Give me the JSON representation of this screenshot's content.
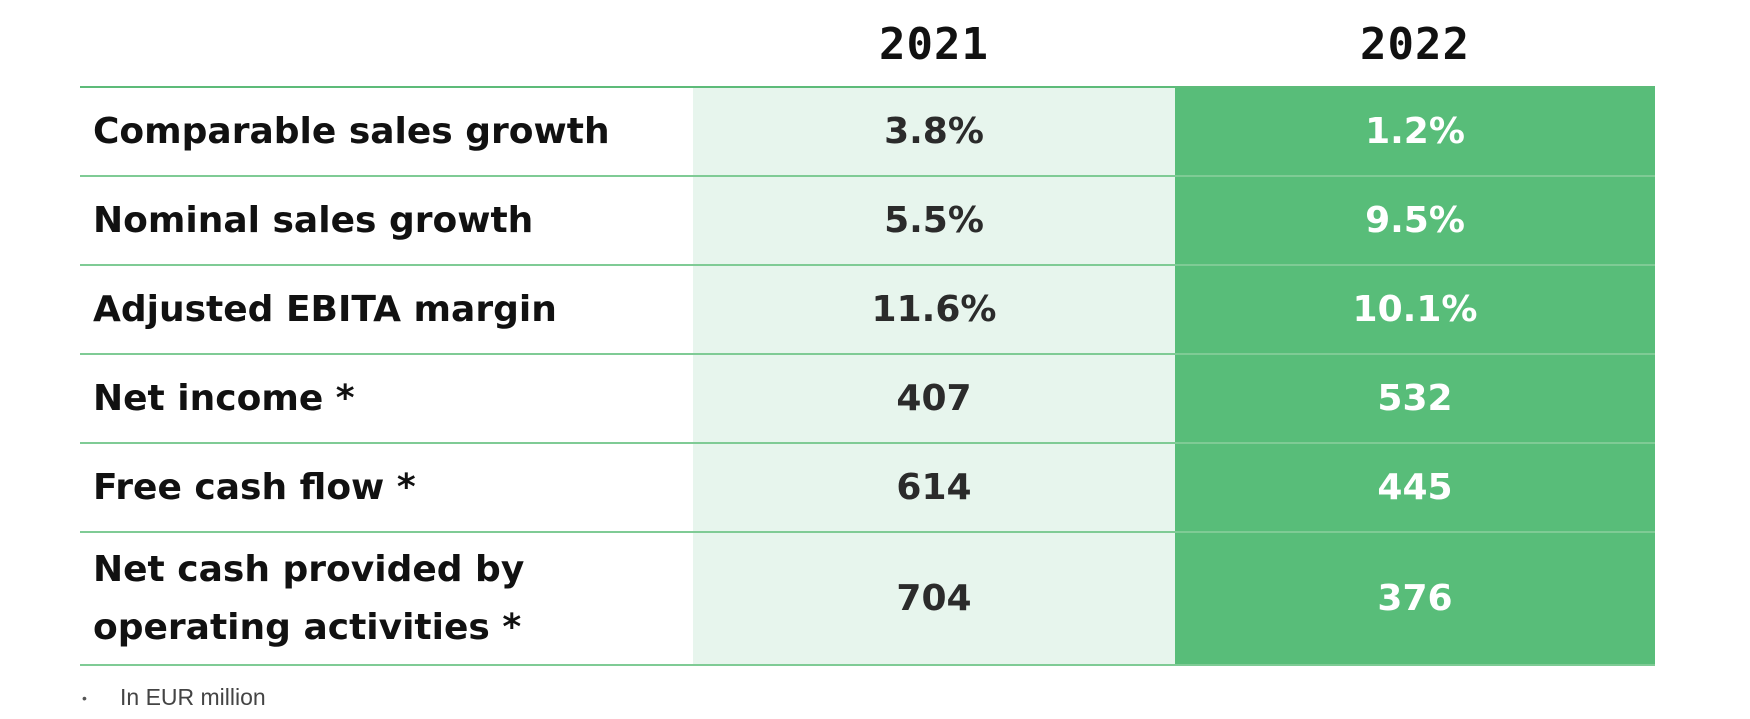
{
  "header": {
    "col_2021": "2021",
    "col_2022": "2022"
  },
  "rows": [
    {
      "label": "Comparable sales growth",
      "v2021": "3.8%",
      "v2022": "1.2%"
    },
    {
      "label": "Nominal sales growth",
      "v2021": "5.5%",
      "v2022": "9.5%"
    },
    {
      "label": "Adjusted EBITA margin",
      "v2021": "11.6%",
      "v2022": "10.1%"
    },
    {
      "label": "Net income *",
      "v2021": "407",
      "v2022": "532"
    },
    {
      "label": "Free cash flow *",
      "v2021": "614",
      "v2022": "445"
    },
    {
      "label": "Net cash provided by operating activities *",
      "v2021": "704",
      "v2022": "376"
    }
  ],
  "footnote": {
    "bullet": "•",
    "text": "In EUR million"
  },
  "colors": {
    "accent_green": "#58bd79",
    "light_green": "#e7f5ed",
    "divider": "#7fcb95"
  }
}
